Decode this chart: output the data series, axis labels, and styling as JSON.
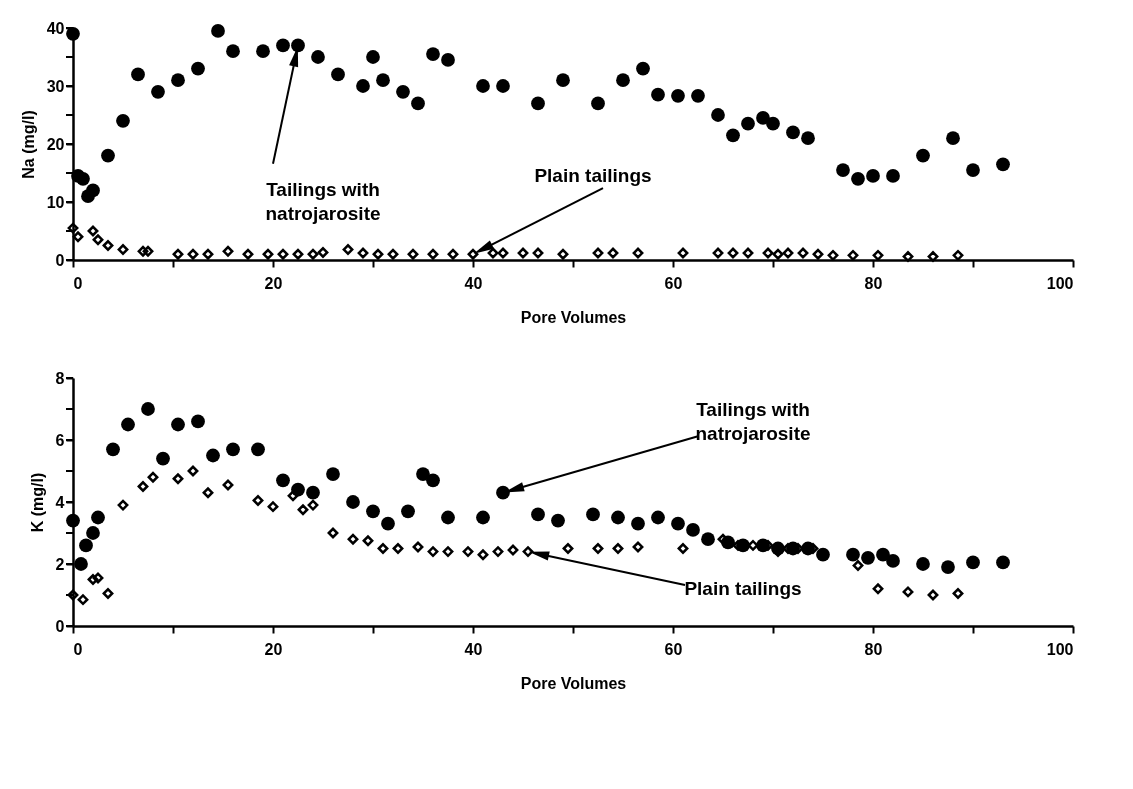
{
  "chart_data": [
    {
      "type": "scatter",
      "xlabel": "Pore Volumes",
      "ylabel": "Na (mg/l)",
      "xlim": [
        0,
        100
      ],
      "ylim": [
        0,
        40
      ],
      "xticks": [
        0,
        {
          "value": 10,
          "label": null
        },
        20,
        {
          "value": 30,
          "label": null
        },
        40,
        {
          "value": 50,
          "label": null
        },
        60,
        {
          "value": 70,
          "label": null
        },
        80,
        {
          "value": 90,
          "label": null
        },
        100
      ],
      "yticks": [
        0,
        {
          "value": 5,
          "label": null
        },
        10,
        {
          "value": 15,
          "label": null
        },
        20,
        {
          "value": 25,
          "label": null
        },
        30,
        {
          "value": 35,
          "label": null
        },
        40
      ],
      "grid": false,
      "legend": false,
      "series": [
        {
          "color": "#000000",
          "marker": "circle",
          "x": [
            0,
            0.5,
            1,
            1.5,
            2,
            3.5,
            5,
            6.5,
            8.5,
            10.5,
            12.5,
            14.5,
            16,
            19,
            21,
            22.5,
            24.5,
            26.5,
            29,
            30,
            31,
            33,
            34.5,
            36,
            37.5,
            41,
            43,
            46.5,
            49,
            52.5,
            55,
            57,
            58.5,
            60.5,
            62.5,
            64.5,
            66,
            67.5,
            69,
            70,
            72,
            73.5,
            77,
            78.5,
            80,
            82,
            85,
            88,
            90,
            93
          ],
          "values": [
            39,
            14.5,
            14,
            11,
            12,
            18,
            24,
            32,
            29,
            31,
            33,
            39.5,
            36,
            36,
            37,
            37,
            35,
            32,
            30,
            35,
            31,
            29,
            27,
            35.5,
            34.5,
            30,
            30,
            27,
            31,
            27,
            31,
            33,
            28.5,
            28.3,
            28.3,
            25,
            21.5,
            23.5,
            24.5,
            23.5,
            22,
            21,
            15.5,
            14,
            14.5,
            14.5,
            18,
            21,
            15.5,
            16.5
          ]
        },
        {
          "color": "#000000",
          "marker": "diamond",
          "x": [
            0,
            0.5,
            2,
            2.5,
            3.5,
            5,
            7,
            7.5,
            10.5,
            12,
            13.5,
            15.5,
            17.5,
            19.5,
            21,
            22.5,
            24,
            25,
            27.5,
            29,
            30.5,
            32,
            34,
            36,
            38,
            40,
            42,
            43,
            45,
            46.5,
            49,
            52.5,
            54,
            56.5,
            61,
            64.5,
            66,
            67.5,
            69.5,
            70.5,
            71.5,
            73,
            74.5,
            76,
            78,
            80.5,
            83.5,
            86,
            88.5
          ],
          "values": [
            5.5,
            4,
            5,
            3.5,
            2.5,
            1.8,
            1.5,
            1.5,
            1,
            1,
            1,
            1.5,
            1,
            1,
            1,
            1,
            1,
            1.3,
            1.8,
            1.2,
            1,
            1,
            1,
            1,
            1,
            1,
            1.2,
            1.2,
            1.2,
            1.2,
            1,
            1.2,
            1.2,
            1.2,
            1.2,
            1.2,
            1.2,
            1.2,
            1.2,
            1,
            1.2,
            1.2,
            1,
            0.8,
            0.8,
            0.8,
            0.6,
            0.6,
            0.8
          ]
        }
      ],
      "annotations": [
        {
          "text": "Tailings with\nnatrojarosite",
          "x": 22.5,
          "y": 37
        },
        {
          "text": "Plain tailings",
          "x": 40,
          "y": 1
        }
      ]
    },
    {
      "type": "scatter",
      "xlabel": "Pore Volumes",
      "ylabel": "K (mg/l)",
      "xlim": [
        0,
        100
      ],
      "ylim": [
        0,
        8
      ],
      "xticks": [
        0,
        {
          "value": 10,
          "label": null
        },
        20,
        {
          "value": 30,
          "label": null
        },
        40,
        {
          "value": 50,
          "label": null
        },
        60,
        {
          "value": 70,
          "label": null
        },
        80,
        {
          "value": 90,
          "label": null
        },
        100
      ],
      "yticks": [
        0,
        {
          "value": 1,
          "label": null
        },
        2,
        {
          "value": 3,
          "label": null
        },
        4,
        {
          "value": 5,
          "label": null
        },
        6,
        {
          "value": 7,
          "label": null
        },
        8
      ],
      "grid": false,
      "legend": false,
      "series": [
        {
          "color": "#000000",
          "marker": "circle",
          "x": [
            0,
            0.8,
            1.3,
            2,
            2.5,
            4,
            5.5,
            7.5,
            9,
            10.5,
            12.5,
            14,
            16,
            18.5,
            21,
            22.5,
            24,
            26,
            28,
            30,
            31.5,
            33.5,
            35,
            36,
            37.5,
            41,
            43,
            46.5,
            48.5,
            52,
            54.5,
            56.5,
            58.5,
            60.5,
            62,
            63.5,
            65.5,
            67,
            69,
            70.5,
            72,
            73.5,
            75,
            78,
            79.5,
            81,
            82,
            85,
            87.5,
            90,
            93
          ],
          "values": [
            3.4,
            2,
            2.6,
            3,
            3.5,
            5.7,
            6.5,
            7,
            5.4,
            6.5,
            6.6,
            5.5,
            5.7,
            5.7,
            4.7,
            4.4,
            4.3,
            4.9,
            4,
            3.7,
            3.3,
            3.7,
            4.9,
            4.7,
            3.5,
            3.5,
            4.3,
            3.6,
            3.4,
            3.6,
            3.5,
            3.3,
            3.5,
            3.3,
            3.1,
            2.8,
            2.7,
            2.6,
            2.6,
            2.5,
            2.5,
            2.5,
            2.3,
            2.3,
            2.2,
            2.3,
            2.1,
            2,
            1.9,
            2.05,
            2.05
          ]
        },
        {
          "color": "#000000",
          "marker": "diamond",
          "x": [
            0,
            1,
            2,
            2.5,
            3.5,
            5,
            7,
            8,
            10.5,
            12,
            13.5,
            15.5,
            18.5,
            20,
            22,
            23,
            24,
            26,
            28,
            29.5,
            31,
            32.5,
            34.5,
            36,
            37.5,
            39.5,
            41,
            42.5,
            44,
            45.5,
            49.5,
            52.5,
            54.5,
            56.5,
            61,
            65,
            66.5,
            68,
            69.5,
            70.5,
            71.5,
            72.5,
            74,
            78.5,
            80.5,
            83.5,
            86,
            88.5
          ],
          "values": [
            1,
            0.85,
            1.5,
            1.55,
            1.05,
            3.9,
            4.5,
            4.8,
            4.75,
            5,
            4.3,
            4.55,
            4.05,
            3.85,
            4.2,
            3.75,
            3.9,
            3,
            2.8,
            2.75,
            2.5,
            2.5,
            2.55,
            2.4,
            2.4,
            2.4,
            2.3,
            2.4,
            2.45,
            2.4,
            2.5,
            2.5,
            2.5,
            2.55,
            2.5,
            2.8,
            2.6,
            2.6,
            2.6,
            2.4,
            2.5,
            2.5,
            2.5,
            1.95,
            1.2,
            1.1,
            1,
            1.05
          ]
        }
      ],
      "annotations": [
        {
          "text": "Tailings with\nnatrojarosite",
          "x": 43,
          "y": 4.3
        },
        {
          "text": "Plain tailings",
          "x": 45.5,
          "y": 2.4
        }
      ]
    }
  ]
}
